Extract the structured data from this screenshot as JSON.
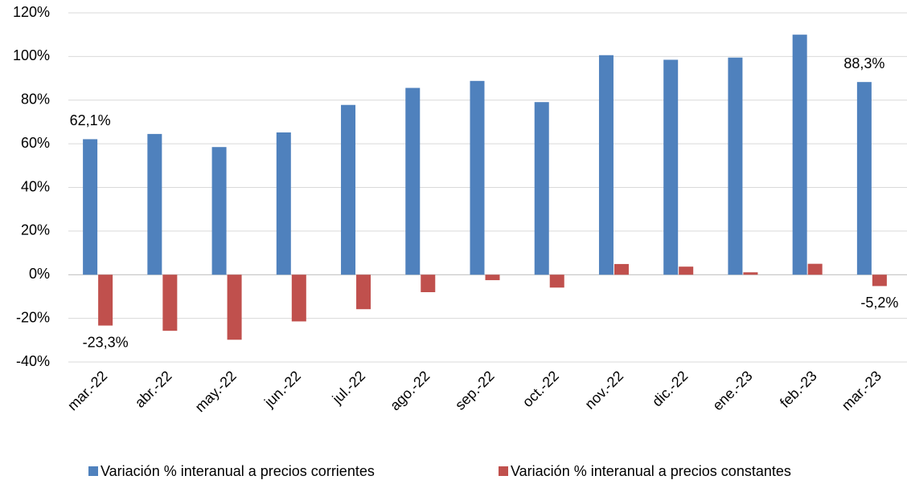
{
  "chart_data": {
    "type": "bar",
    "categories": [
      "mar.-22",
      "abr.-22",
      "may.-22",
      "jun.-22",
      "jul.-22",
      "ago.-22",
      "sep.-22",
      "oct.-22",
      "nov.-22",
      "dic.-22",
      "ene.-23",
      "feb.-23",
      "mar.-23"
    ],
    "series": [
      {
        "name": "Variación % interanual a precios corrientes",
        "color": "#4f81bd",
        "values": [
          62.1,
          64.5,
          58.5,
          65.2,
          77.8,
          85.6,
          88.8,
          79.1,
          100.6,
          98.5,
          99.5,
          110,
          88.3
        ],
        "value_labels": [
          "62,1%",
          null,
          null,
          null,
          null,
          null,
          null,
          null,
          null,
          null,
          null,
          null,
          "88,3%"
        ]
      },
      {
        "name": "Variación % interanual a precios constantes",
        "color": "#c0504d",
        "values": [
          -23.3,
          -25.7,
          -29.8,
          -21.4,
          -15.8,
          -8,
          -2.5,
          -5.9,
          4.9,
          3.7,
          1.1,
          5,
          -5.2
        ],
        "value_labels": [
          "-23,3%",
          null,
          null,
          null,
          null,
          null,
          null,
          null,
          null,
          null,
          null,
          null,
          "-5,2%"
        ]
      }
    ],
    "ylim": [
      -40,
      120
    ],
    "yticks": [
      {
        "value": -40,
        "label": "-40%"
      },
      {
        "value": -20,
        "label": "-20%"
      },
      {
        "value": 0,
        "label": "0%"
      },
      {
        "value": 20,
        "label": "20%"
      },
      {
        "value": 40,
        "label": "40%"
      },
      {
        "value": 60,
        "label": "60%"
      },
      {
        "value": 80,
        "label": "80%"
      },
      {
        "value": 100,
        "label": "100%"
      },
      {
        "value": 120,
        "label": "120%"
      }
    ],
    "grid": true
  }
}
